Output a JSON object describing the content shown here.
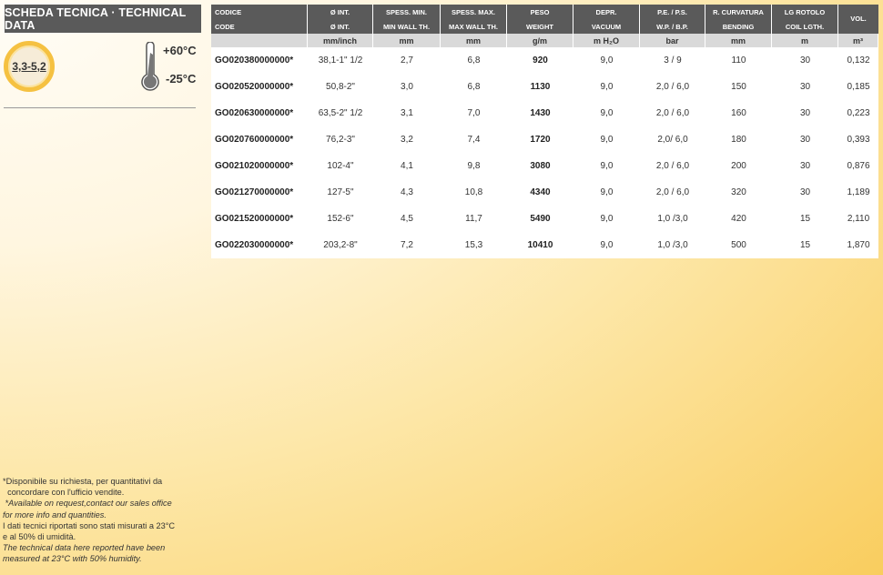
{
  "title": "SCHEDA TECNICA · TECHNICAL DATA",
  "badge": "3,3-5,2",
  "temp": {
    "max": "+60°C",
    "min": "-25°C"
  },
  "header": {
    "it": [
      "CODICE",
      "Ø INT.",
      "SPESS. MIN.",
      "SPESS. MAX.",
      "PESO",
      "DEPR.",
      "P.E.  /  P.S.",
      "R. CURVATURA",
      "LG ROTOLO"
    ],
    "en": [
      "CODE",
      "Ø INT.",
      "MIN WALL TH.",
      "MAX WALL TH.",
      "WEIGHT",
      "VACUUM",
      "W.P. / B.P.",
      "BENDING",
      "COIL LGTH."
    ],
    "vol": "VOL.",
    "units": [
      "",
      "mm/inch",
      "mm",
      "mm",
      "g/m",
      "m H₂O",
      "bar",
      "mm",
      "m",
      "m³"
    ]
  },
  "rows": [
    [
      "GO020380000000*",
      "38,1-1\" 1/2",
      "2,7",
      "6,8",
      "920",
      "9,0",
      "3  /  9",
      "110",
      "30",
      "0,132"
    ],
    [
      "GO020520000000*",
      "50,8-2\"",
      "3,0",
      "6,8",
      "1130",
      "9,0",
      "2,0  / 6,0",
      "150",
      "30",
      "0,185"
    ],
    [
      "GO020630000000*",
      "63,5-2\" 1/2",
      "3,1",
      "7,0",
      "1430",
      "9,0",
      "2,0 /  6,0",
      "160",
      "30",
      "0,223"
    ],
    [
      "GO020760000000*",
      "76,2-3\"",
      "3,2",
      "7,4",
      "1720",
      "9,0",
      "2,0/  6,0",
      "180",
      "30",
      "0,393"
    ],
    [
      "GO021020000000*",
      "102-4\"",
      "4,1",
      "9,8",
      "3080",
      "9,0",
      "2,0 / 6,0",
      "200",
      "30",
      "0,876"
    ],
    [
      "GO021270000000*",
      "127-5\"",
      "4,3",
      "10,8",
      "4340",
      "9,0",
      "2,0 / 6,0",
      "320",
      "30",
      "1,189"
    ],
    [
      "GO021520000000*",
      "152-6\"",
      "4,5",
      "11,7",
      "5490",
      "9,0",
      "1,0  /3,0",
      "420",
      "15",
      "2,110"
    ],
    [
      "GO022030000000*",
      "203,2-8\"",
      "7,2",
      "15,3",
      "10410",
      "9,0",
      "1,0  /3,0",
      "500",
      "15",
      "1,870"
    ]
  ],
  "notes": [
    "*Disponibile su richiesta, per quantitativi da",
    "  concordare con l'ufficio vendite.",
    " *Available on request,contact our sales office",
    "for more info and quantities.",
    "I dati tecnici riportati sono stati misurati a 23°C",
    "e al 50% di umidità.",
    "The technical data here reported have been",
    "measured at 23°C with 50% humidity."
  ]
}
